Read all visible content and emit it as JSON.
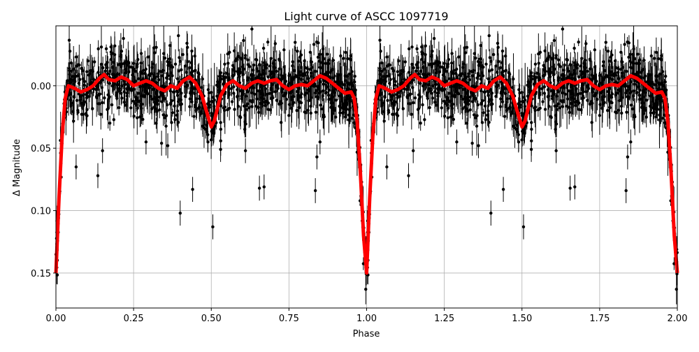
{
  "chart_data": {
    "type": "scatter",
    "title": "Light curve of ASCC 1097719",
    "xlabel": "Phase",
    "ylabel": "Δ Magnitude",
    "xlim": [
      0,
      2
    ],
    "ylim": [
      0.178,
      -0.048
    ],
    "y_inverted": true,
    "grid": true,
    "x_ticks": [
      "0.00",
      "0.25",
      "0.50",
      "0.75",
      "1.00",
      "1.25",
      "1.50",
      "1.75",
      "2.00"
    ],
    "x_tick_values": [
      0,
      0.25,
      0.5,
      0.75,
      1.0,
      1.25,
      1.5,
      1.75,
      2.0
    ],
    "y_ticks": [
      "0.00",
      "0.05",
      "0.10",
      "0.15"
    ],
    "y_tick_values": [
      0,
      0.05,
      0.1,
      0.15
    ],
    "series": [
      {
        "name": "model",
        "kind": "line",
        "color": "#ff0000",
        "period_repeat": [
          0,
          1
        ],
        "phase": [
          0.0,
          0.01,
          0.02,
          0.03,
          0.04,
          0.06,
          0.08,
          0.1,
          0.12,
          0.14,
          0.155,
          0.17,
          0.19,
          0.21,
          0.23,
          0.25,
          0.27,
          0.29,
          0.31,
          0.33,
          0.35,
          0.37,
          0.39,
          0.41,
          0.43,
          0.45,
          0.47,
          0.49,
          0.5,
          0.51,
          0.53,
          0.55,
          0.57,
          0.59,
          0.61,
          0.63,
          0.65,
          0.67,
          0.69,
          0.71,
          0.73,
          0.75,
          0.77,
          0.79,
          0.81,
          0.83,
          0.85,
          0.87,
          0.89,
          0.91,
          0.93,
          0.95,
          0.96,
          0.97,
          0.98,
          0.99,
          1.0
        ],
        "mag": [
          0.15,
          0.09,
          0.04,
          0.01,
          0.0,
          0.002,
          0.005,
          0.003,
          0.0,
          -0.006,
          -0.009,
          -0.005,
          -0.004,
          -0.007,
          -0.005,
          0.0,
          -0.002,
          -0.004,
          -0.002,
          0.002,
          0.004,
          0.0,
          0.002,
          -0.004,
          -0.007,
          -0.002,
          0.008,
          0.025,
          0.033,
          0.028,
          0.008,
          -0.001,
          -0.004,
          0.0,
          0.002,
          -0.002,
          -0.004,
          -0.002,
          -0.004,
          -0.005,
          0.0,
          0.003,
          0.0,
          -0.001,
          0.0,
          -0.004,
          -0.008,
          -0.006,
          -0.002,
          0.002,
          0.006,
          0.005,
          0.01,
          0.03,
          0.07,
          0.12,
          0.15
        ]
      },
      {
        "name": "observations",
        "kind": "errorbar-scatter",
        "color": "#000000",
        "scatter_sigma": 0.013,
        "error_sigma": 0.008,
        "points_per_cycle": 1100,
        "outliers_phase": [
          0.4,
          0.44,
          0.505,
          0.655,
          0.67,
          0.835,
          0.15,
          0.29,
          0.34,
          0.36,
          0.53,
          0.61,
          0.85,
          0.84,
          0.065,
          0.135
        ],
        "outliers_mag": [
          0.102,
          0.083,
          0.113,
          0.082,
          0.081,
          0.084,
          0.052,
          0.045,
          0.046,
          0.048,
          0.051,
          0.052,
          0.045,
          0.057,
          0.065,
          0.072
        ]
      }
    ]
  }
}
